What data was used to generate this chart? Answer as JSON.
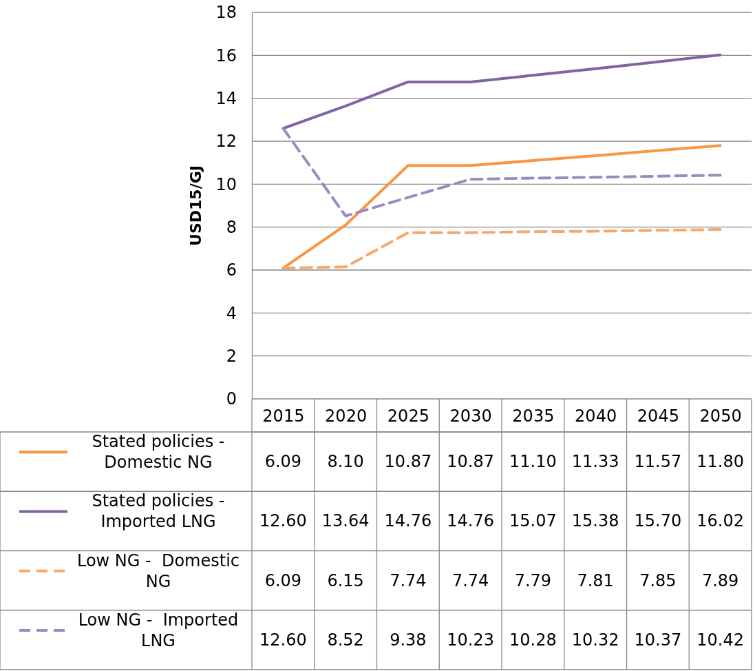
{
  "chart_data": {
    "type": "line",
    "ylabel": "USD15/GJ",
    "categories": [
      "2015",
      "2020",
      "2025",
      "2030",
      "2035",
      "2040",
      "2045",
      "2050"
    ],
    "ylim": [
      0,
      18
    ],
    "yticks": [
      0,
      2,
      4,
      6,
      8,
      10,
      12,
      14,
      16,
      18
    ],
    "grid": "y",
    "legend": "bottom",
    "marker": "none",
    "series": [
      {
        "name": "Stated policies - Domestic NG",
        "color": "#f79646",
        "line_style": "solid",
        "values": [
          6.09,
          8.1,
          10.87,
          10.87,
          11.1,
          11.33,
          11.57,
          11.8
        ],
        "value_labels": [
          "6.09",
          "8.10",
          "10.87",
          "10.87",
          "11.10",
          "11.33",
          "11.57",
          "11.80"
        ]
      },
      {
        "name": "Stated policies - Imported LNG",
        "color": "#8064a2",
        "line_style": "solid",
        "values": [
          12.6,
          13.64,
          14.76,
          14.76,
          15.07,
          15.38,
          15.7,
          16.02
        ],
        "value_labels": [
          "12.60",
          "13.64",
          "14.76",
          "14.76",
          "15.07",
          "15.38",
          "15.70",
          "16.02"
        ]
      },
      {
        "name": "Low NG -  Domestic NG",
        "color": "#f9a86a",
        "line_style": "dashed",
        "values": [
          6.09,
          6.15,
          7.74,
          7.74,
          7.79,
          7.81,
          7.85,
          7.89
        ],
        "value_labels": [
          "6.09",
          "6.15",
          "7.74",
          "7.74",
          "7.79",
          "7.81",
          "7.85",
          "7.89"
        ]
      },
      {
        "name": "Low NG -  Imported LNG",
        "color": "#9e88c4",
        "line_style": "dashed",
        "values": [
          12.6,
          8.52,
          9.38,
          10.23,
          10.28,
          10.32,
          10.37,
          10.42
        ],
        "value_labels": [
          "12.60",
          "8.52",
          "9.38",
          "10.23",
          "10.28",
          "10.32",
          "10.37",
          "10.42"
        ]
      }
    ]
  }
}
